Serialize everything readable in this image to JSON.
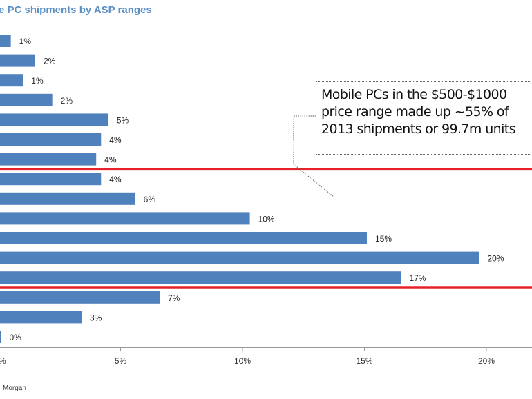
{
  "chart_data": {
    "type": "bar",
    "orientation": "horizontal",
    "title": "e PC shipments by ASP ranges",
    "values": [
      0.5,
      1.5,
      1.0,
      2.2,
      4.5,
      4.2,
      4.0,
      4.2,
      5.6,
      10.3,
      15.1,
      19.7,
      16.5,
      6.6,
      3.4,
      0.1
    ],
    "value_labels": [
      "1%",
      "2%",
      "1%",
      "2%",
      "5%",
      "4%",
      "4%",
      "4%",
      "6%",
      "10%",
      "15%",
      "20%",
      "17%",
      "7%",
      "3%",
      "0%"
    ],
    "xlim": [
      0,
      22
    ],
    "x_ticks": [
      0,
      5,
      10,
      15,
      20
    ],
    "x_tick_labels": [
      "%",
      "5%",
      "10%",
      "15%",
      "20%"
    ],
    "bar_color": "#4f81bd",
    "highlight_line_color": "#e8202a",
    "highlight_range_rows": [
      7,
      12
    ],
    "annotation": {
      "lines": [
        "Mobile PCs in the $500-$1000",
        "price range made up ~55%  of",
        "2013 shipments or 99.7m units"
      ]
    },
    "source": "Morgan"
  }
}
